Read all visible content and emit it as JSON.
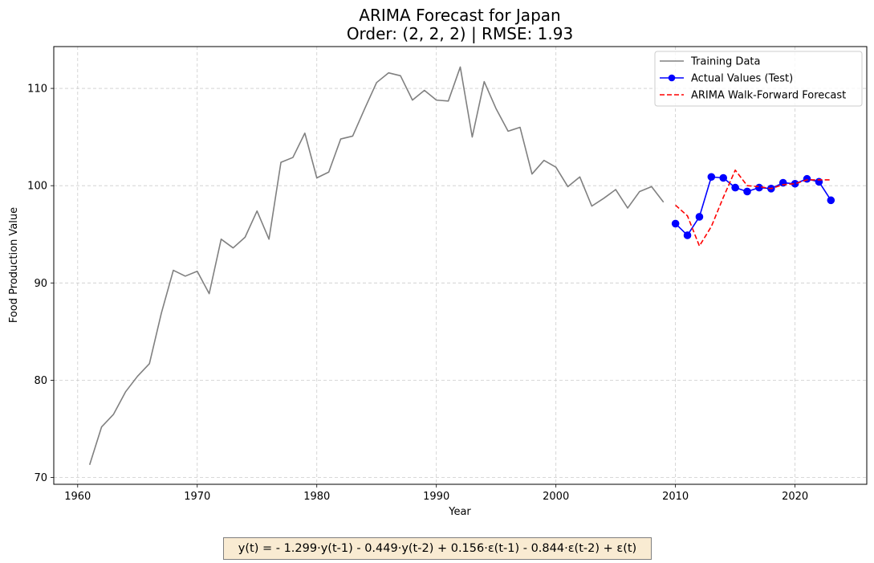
{
  "chart_data": {
    "type": "line",
    "title": "ARIMA Forecast for Japan",
    "subtitle": "Order: (2, 2, 2) | RMSE: 1.93",
    "xlabel": "Year",
    "ylabel": "Food Production Value",
    "xlim": [
      1958,
      2026
    ],
    "ylim": [
      69.3,
      114.3
    ],
    "x_ticks": [
      1960,
      1970,
      1980,
      1990,
      2000,
      2010,
      2020
    ],
    "y_ticks": [
      70,
      80,
      90,
      100,
      110
    ],
    "grid": true,
    "legend_position": "top-right",
    "series": [
      {
        "name": "Training Data",
        "color": "#808080",
        "style": "solid",
        "x": [
          1961,
          1962,
          1963,
          1964,
          1965,
          1966,
          1967,
          1968,
          1969,
          1970,
          1971,
          1972,
          1973,
          1974,
          1975,
          1976,
          1977,
          1978,
          1979,
          1980,
          1981,
          1982,
          1983,
          1984,
          1985,
          1986,
          1987,
          1988,
          1989,
          1990,
          1991,
          1992,
          1993,
          1994,
          1995,
          1996,
          1997,
          1998,
          1999,
          2000,
          2001,
          2002,
          2003,
          2004,
          2005,
          2006,
          2007,
          2008,
          2009
        ],
        "y": [
          71.3,
          75.2,
          76.5,
          78.8,
          80.4,
          81.7,
          86.9,
          91.3,
          90.7,
          91.2,
          88.9,
          94.5,
          93.6,
          94.7,
          97.4,
          94.5,
          102.4,
          102.9,
          105.4,
          100.8,
          101.4,
          104.8,
          105.1,
          107.9,
          110.6,
          111.6,
          111.3,
          108.8,
          109.8,
          108.8,
          108.7,
          112.2,
          105.0,
          110.7,
          107.9,
          105.6,
          106.0,
          101.2,
          102.6,
          101.9,
          99.9,
          100.9,
          97.9,
          98.7,
          99.6,
          97.7,
          99.4,
          99.9,
          98.3
        ]
      },
      {
        "name": "Actual Values (Test)",
        "color": "#0000ff",
        "style": "solid-markers",
        "x": [
          2010,
          2011,
          2012,
          2013,
          2014,
          2015,
          2016,
          2017,
          2018,
          2019,
          2020,
          2021,
          2022,
          2023
        ],
        "y": [
          96.1,
          94.9,
          96.8,
          100.9,
          100.8,
          99.8,
          99.4,
          99.8,
          99.7,
          100.3,
          100.2,
          100.7,
          100.4,
          98.5
        ]
      },
      {
        "name": "ARIMA Walk-Forward Forecast",
        "color": "#ff0000",
        "style": "dashed",
        "x": [
          2010,
          2011,
          2012,
          2013,
          2014,
          2015,
          2016,
          2017,
          2018,
          2019,
          2020,
          2021,
          2022,
          2023
        ],
        "y": [
          98.0,
          96.9,
          93.8,
          95.8,
          98.8,
          101.6,
          100.0,
          99.9,
          99.7,
          100.1,
          100.2,
          100.6,
          100.6,
          100.6
        ]
      }
    ]
  },
  "formula": "y(t) = - 1.299·y(t-1) - 0.449·y(t-2) + 0.156·ε(t-1) - 0.844·ε(t-2) + ε(t)"
}
